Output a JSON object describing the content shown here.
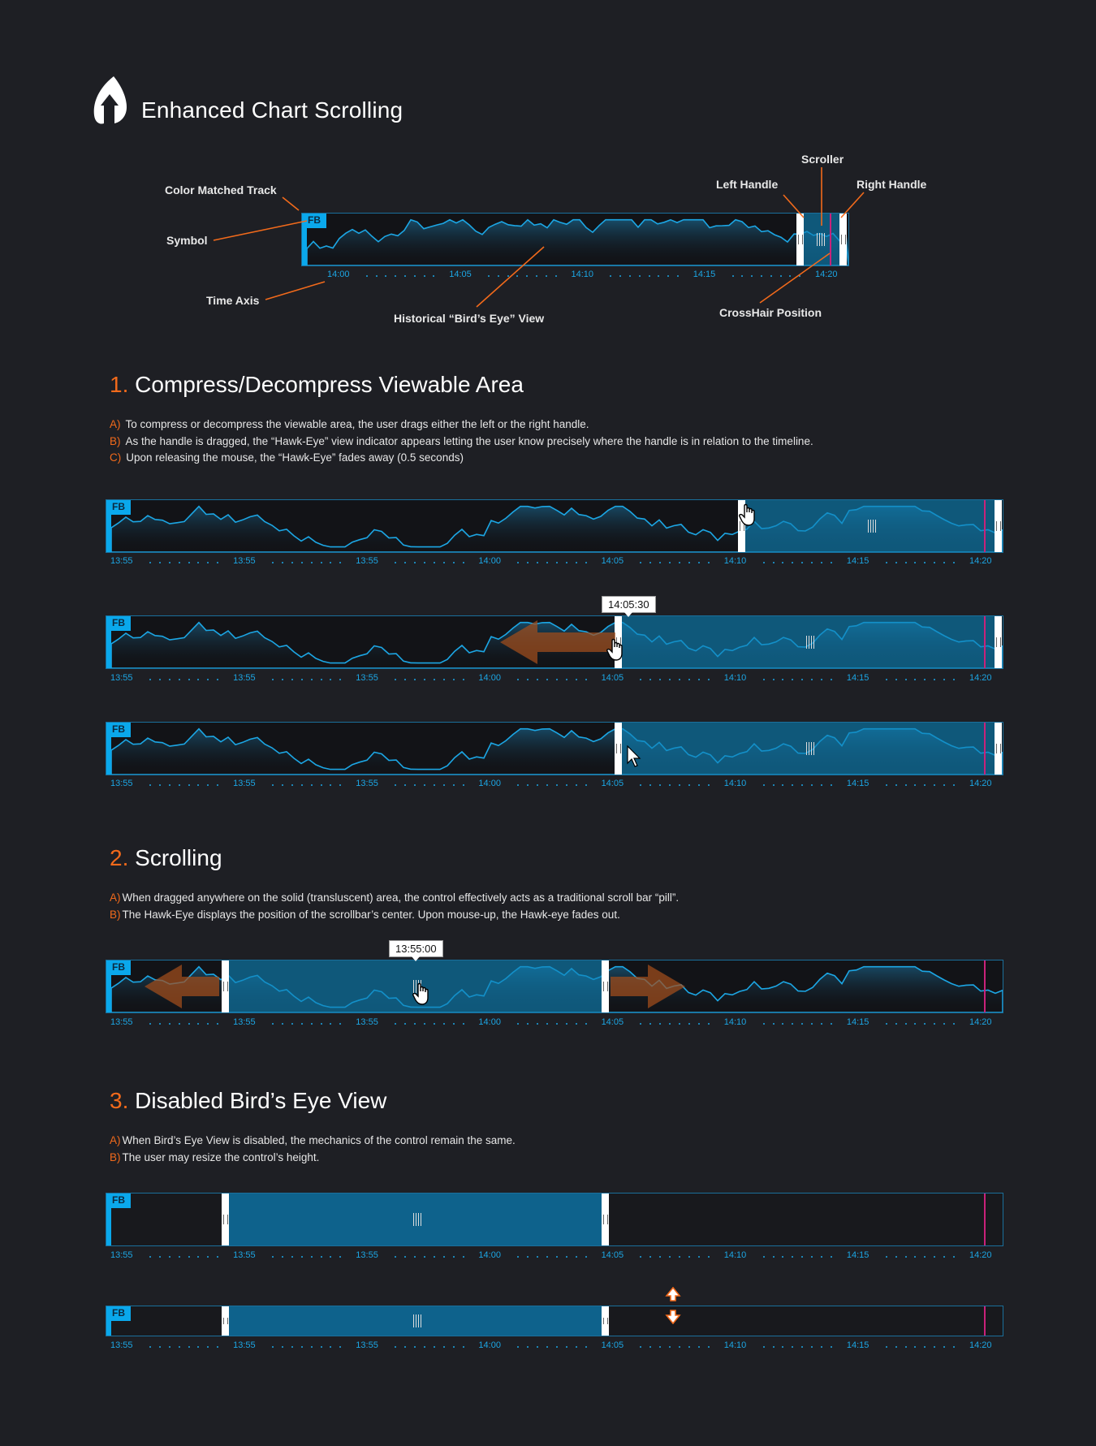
{
  "title": "Enhanced Chart Scrolling",
  "symbol": "FB",
  "callouts": {
    "color_track": "Color Matched Track",
    "symbol": "Symbol",
    "time_axis": "Time Axis",
    "birds_eye": "Historical “Bird’s Eye” View",
    "scroller": "Scroller",
    "left_handle": "Left Handle",
    "right_handle": "Right Handle",
    "crosshair": "CrossHair Position"
  },
  "overview_axis": [
    "14:00",
    "14:05",
    "14:10",
    "14:15",
    "14:20"
  ],
  "wide_axis": [
    "13:55",
    "13:55",
    "13:55",
    "14:00",
    "14:05",
    "14:10",
    "14:15",
    "14:20"
  ],
  "section1": {
    "num": "1.",
    "title": "Compress/Decompress Viewable Area",
    "steps": [
      {
        "letter": "A)",
        "text": "To compress or decompress the viewable area, the user drags either the left or the right handle."
      },
      {
        "letter": "B)",
        "text": "As the handle is dragged, the “Hawk-Eye” view indicator appears letting the user know precisely where the handle is in relation to the timeline."
      },
      {
        "letter": "C)",
        "text": "Upon releasing the mouse, the “Hawk-Eye” fades away (0.5 seconds)"
      }
    ],
    "tooltip": "14:05:30"
  },
  "section2": {
    "num": "2.",
    "title": "Scrolling",
    "steps": [
      {
        "letter": "A)",
        "text": "When dragged anywhere on the solid (transluscent) area, the control effectively acts as a traditional scroll bar “pill”."
      },
      {
        "letter": "B)",
        "text": "The Hawk-Eye displays the position of the scrollbar’s center. Upon mouse-up, the Hawk-eye fades out."
      }
    ],
    "tooltip": "13:55:00"
  },
  "section3": {
    "num": "3.",
    "title": "Disabled Bird’s Eye View",
    "steps": [
      {
        "letter": "A)",
        "text": "When Bird’s Eye View is disabled, the mechanics of the control remain the same."
      },
      {
        "letter": "B)",
        "text": "The user may resize the control’s height."
      }
    ]
  },
  "colors": {
    "accent": "#f26a1b",
    "track": "#0aa8ec",
    "scroller": "#0e82b8",
    "crosshair": "#c9227a",
    "background": "#1e1f24"
  },
  "icons": [
    "brand-logo-icon",
    "hand-cursor-icon",
    "arrow-cursor-icon",
    "drag-left-arrow-icon",
    "drag-right-arrow-icon",
    "resize-vertical-icon"
  ]
}
